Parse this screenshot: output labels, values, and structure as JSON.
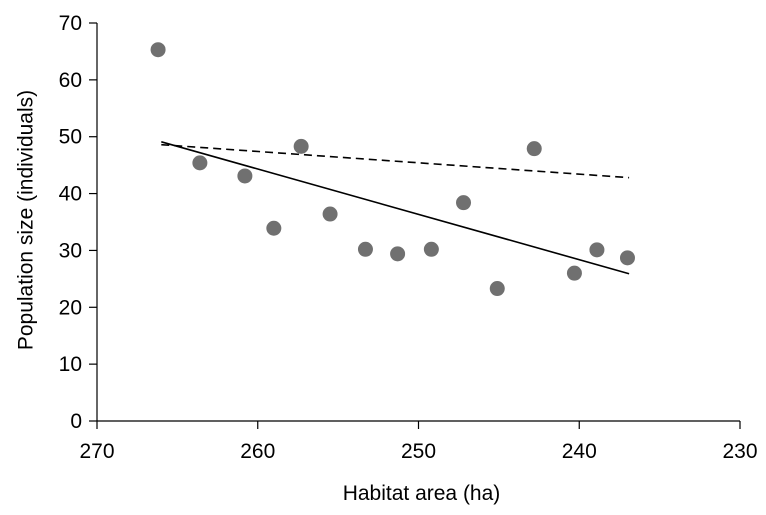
{
  "chart_data": {
    "type": "scatter",
    "title": "",
    "xlabel": "Habitat area (ha)",
    "ylabel": "Population size (individuals)",
    "xlim": [
      270,
      230
    ],
    "ylim": [
      0,
      70
    ],
    "x_reversed": true,
    "x_ticks": [
      270,
      260,
      250,
      240,
      230
    ],
    "y_ticks": [
      0,
      10,
      20,
      30,
      40,
      50,
      60,
      70
    ],
    "grid": false,
    "legend": "none",
    "series": [
      {
        "type": "scatter",
        "color": "#707070",
        "points": [
          {
            "x": 266.2,
            "y": 65.3
          },
          {
            "x": 263.6,
            "y": 45.4
          },
          {
            "x": 260.8,
            "y": 43.1
          },
          {
            "x": 259.0,
            "y": 33.9
          },
          {
            "x": 257.3,
            "y": 48.3
          },
          {
            "x": 255.5,
            "y": 36.4
          },
          {
            "x": 253.3,
            "y": 30.2
          },
          {
            "x": 251.3,
            "y": 29.4
          },
          {
            "x": 249.2,
            "y": 30.2
          },
          {
            "x": 247.2,
            "y": 38.4
          },
          {
            "x": 245.1,
            "y": 23.3
          },
          {
            "x": 242.8,
            "y": 47.9
          },
          {
            "x": 240.3,
            "y": 26.0
          },
          {
            "x": 238.9,
            "y": 30.1
          },
          {
            "x": 237.0,
            "y": 28.7
          }
        ]
      },
      {
        "type": "line",
        "style": "solid",
        "color": "#000000",
        "points": [
          {
            "x": 266.0,
            "y": 49.1
          },
          {
            "x": 236.9,
            "y": 25.9
          }
        ]
      },
      {
        "type": "line",
        "style": "dashed",
        "color": "#000000",
        "points": [
          {
            "x": 266.0,
            "y": 48.6
          },
          {
            "x": 236.9,
            "y": 42.8
          }
        ]
      }
    ]
  }
}
